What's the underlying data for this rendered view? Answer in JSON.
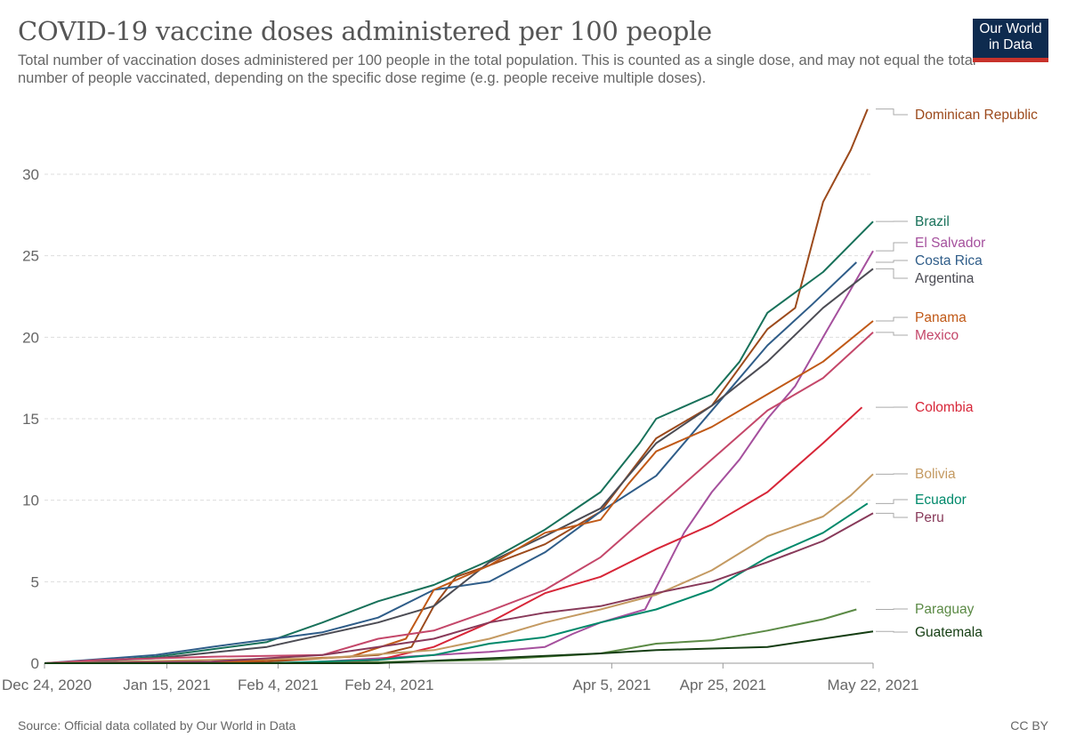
{
  "header": {
    "title": "COVID-19 vaccine doses administered per 100 people",
    "subtitle": "Total number of vaccination doses administered per 100 people in the total population. This is counted as a single dose, and may not equal the total number of people vaccinated, depending on the specific dose regime (e.g. people receive multiple doses).",
    "logo": "Our World in Data"
  },
  "footer": {
    "source": "Source: Official data collated by Our World in Data",
    "license": "CC BY"
  },
  "chart_data": {
    "type": "line",
    "title": "COVID-19 vaccine doses administered per 100 people",
    "xlabel": "",
    "ylabel": "",
    "x_unit": "days since Dec 24, 2020",
    "xlim": [
      0,
      149
    ],
    "ylim": [
      0,
      34
    ],
    "yticks": [
      0,
      5,
      10,
      15,
      20,
      25,
      30
    ],
    "xticks": [
      {
        "day": 0,
        "label": "Dec 24, 2020"
      },
      {
        "day": 22,
        "label": "Jan 15, 2021"
      },
      {
        "day": 42,
        "label": "Feb 4, 2021"
      },
      {
        "day": 62,
        "label": "Feb 24, 2021"
      },
      {
        "day": 102,
        "label": "Apr 5, 2021"
      },
      {
        "day": 122,
        "label": "Apr 25, 2021"
      },
      {
        "day": 149,
        "label": "May 22, 2021"
      }
    ],
    "grid": "horizontal dashed",
    "legend": "right (line-end labels)",
    "series": [
      {
        "name": "Dominican Republic",
        "color": "#9c4a1c",
        "x": [
          0,
          40,
          60,
          66,
          70,
          74,
          80,
          90,
          100,
          110,
          120,
          130,
          135,
          140,
          145,
          148
        ],
        "y": [
          0,
          0.1,
          0.5,
          1,
          3.5,
          5.3,
          6,
          7.3,
          9.3,
          13.8,
          15.8,
          20.5,
          21.8,
          28.3,
          31.5,
          34
        ]
      },
      {
        "name": "Brazil",
        "color": "#18715a",
        "x": [
          5,
          20,
          40,
          50,
          60,
          70,
          80,
          90,
          100,
          107,
          110,
          120,
          125,
          130,
          140,
          149
        ],
        "y": [
          0,
          0.4,
          1.3,
          2.5,
          3.8,
          4.8,
          6.3,
          8.2,
          10.5,
          13.5,
          15,
          16.5,
          18.5,
          21.5,
          24,
          27.1
        ]
      },
      {
        "name": "El Salvador",
        "color": "#a5509d",
        "x": [
          45,
          60,
          80,
          90,
          95,
          100,
          108,
          115,
          120,
          125,
          130,
          135,
          140,
          149
        ],
        "y": [
          0,
          0.3,
          0.7,
          1,
          1.8,
          2.5,
          3.3,
          8,
          10.5,
          12.5,
          15,
          17,
          20,
          25.3
        ]
      },
      {
        "name": "Costa Rica",
        "color": "#2f5d89",
        "x": [
          0,
          20,
          30,
          50,
          60,
          70,
          80,
          90,
          100,
          110,
          120,
          130,
          138,
          146
        ],
        "y": [
          0,
          0.5,
          1,
          1.9,
          2.8,
          4.5,
          5,
          6.8,
          9.3,
          11.5,
          15.5,
          19.5,
          22,
          24.6
        ]
      },
      {
        "name": "Argentina",
        "color": "#4c4c54",
        "x": [
          0,
          20,
          40,
          60,
          70,
          80,
          90,
          100,
          110,
          120,
          130,
          140,
          149
        ],
        "y": [
          0,
          0.3,
          1,
          2.5,
          3.5,
          6.2,
          7.8,
          9.5,
          13.5,
          15.8,
          18.5,
          21.8,
          24.2
        ]
      },
      {
        "name": "Panama",
        "color": "#c05917",
        "x": [
          30,
          40,
          55,
          65,
          70,
          80,
          90,
          100,
          105,
          110,
          120,
          130,
          140,
          149
        ],
        "y": [
          0,
          0.2,
          0.4,
          1.5,
          4.5,
          6,
          8,
          8.8,
          11,
          13,
          14.5,
          16.5,
          18.5,
          21
        ]
      },
      {
        "name": "Mexico",
        "color": "#c4476a",
        "x": [
          0,
          10,
          30,
          50,
          60,
          70,
          80,
          90,
          100,
          110,
          120,
          130,
          135,
          140,
          149
        ],
        "y": [
          0,
          0.2,
          0.4,
          0.5,
          1.5,
          2,
          3.2,
          4.5,
          6.5,
          9.5,
          12.5,
          15.5,
          16.5,
          17.5,
          20.3
        ]
      },
      {
        "name": "Colombia",
        "color": "#d72638",
        "x": [
          50,
          60,
          70,
          80,
          90,
          100,
          110,
          120,
          130,
          140,
          147
        ],
        "y": [
          0,
          0.2,
          1,
          2.5,
          4.3,
          5.3,
          7,
          8.5,
          10.5,
          13.5,
          15.7
        ]
      },
      {
        "name": "Bolivia",
        "color": "#c49a62",
        "x": [
          0,
          30,
          50,
          70,
          80,
          90,
          100,
          110,
          120,
          130,
          140,
          145,
          149
        ],
        "y": [
          0,
          0.2,
          0.3,
          0.8,
          1.5,
          2.5,
          3.3,
          4.2,
          5.7,
          7.8,
          9,
          10.3,
          11.6
        ]
      },
      {
        "name": "Ecuador",
        "color": "#00896b",
        "x": [
          40,
          60,
          70,
          80,
          90,
          100,
          110,
          120,
          130,
          140,
          148
        ],
        "y": [
          0,
          0.2,
          0.5,
          1.2,
          1.6,
          2.5,
          3.3,
          4.5,
          6.5,
          8,
          9.8
        ]
      },
      {
        "name": "Peru",
        "color": "#883a5a",
        "x": [
          0,
          30,
          50,
          60,
          70,
          80,
          90,
          100,
          110,
          120,
          130,
          140,
          149
        ],
        "y": [
          0,
          0.1,
          0.5,
          1,
          1.5,
          2.5,
          3.1,
          3.5,
          4.3,
          5,
          6.2,
          7.5,
          9.2
        ]
      },
      {
        "name": "Paraguay",
        "color": "#5b8a45",
        "x": [
          50,
          80,
          100,
          110,
          120,
          130,
          140,
          146
        ],
        "y": [
          0,
          0.2,
          0.6,
          1.2,
          1.4,
          2,
          2.7,
          3.3
        ]
      },
      {
        "name": "Guatemala",
        "color": "#143d12",
        "x": [
          0,
          60,
          80,
          100,
          110,
          120,
          130,
          140,
          149
        ],
        "y": [
          0,
          0,
          0.3,
          0.6,
          0.8,
          0.9,
          1,
          1.5,
          1.95
        ]
      }
    ]
  }
}
